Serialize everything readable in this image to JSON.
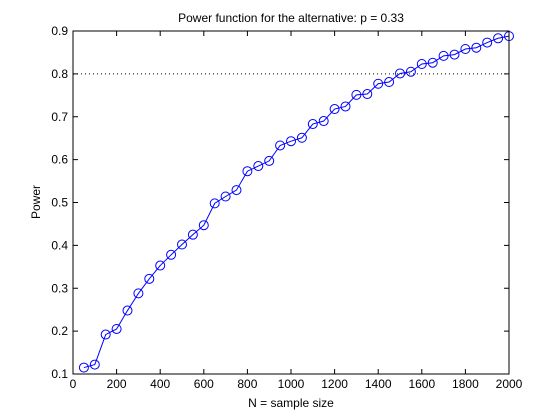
{
  "chart_data": {
    "type": "line",
    "title": "Power function for the alternative: p = 0.33",
    "xlabel": "N = sample size",
    "ylabel": "Power",
    "xlim": [
      0,
      2000
    ],
    "ylim": [
      0.1,
      0.9
    ],
    "xticks": [
      0,
      200,
      400,
      600,
      800,
      1000,
      1200,
      1400,
      1600,
      1800,
      2000
    ],
    "yticks": [
      0.1,
      0.2,
      0.3,
      0.4,
      0.5,
      0.6,
      0.7,
      0.8,
      0.9
    ],
    "xtick_labels": [
      "0",
      "200",
      "400",
      "600",
      "800",
      "1000",
      "1200",
      "1400",
      "1600",
      "1800",
      "2000"
    ],
    "ytick_labels": [
      "0.1",
      "0.2",
      "0.3",
      "0.4",
      "0.5",
      "0.6",
      "0.7",
      "0.8",
      "0.9"
    ],
    "grid": false,
    "reference_line": {
      "y": 0.8,
      "style": "dotted",
      "color": "#000000"
    },
    "series": [
      {
        "marker": "circle",
        "color": "#0000ff",
        "x": [
          50,
          100,
          150,
          200,
          250,
          300,
          350,
          400,
          450,
          500,
          550,
          600,
          650,
          700,
          750,
          800,
          850,
          900,
          950,
          1000,
          1050,
          1100,
          1150,
          1200,
          1250,
          1300,
          1350,
          1400,
          1450,
          1500,
          1550,
          1600,
          1650,
          1700,
          1750,
          1800,
          1850,
          1900,
          1950,
          2000
        ],
        "y": [
          0.115,
          0.122,
          0.192,
          0.205,
          0.248,
          0.288,
          0.322,
          0.353,
          0.378,
          0.402,
          0.425,
          0.447,
          0.498,
          0.514,
          0.529,
          0.573,
          0.585,
          0.597,
          0.633,
          0.643,
          0.651,
          0.683,
          0.69,
          0.718,
          0.724,
          0.751,
          0.753,
          0.777,
          0.781,
          0.801,
          0.805,
          0.823,
          0.826,
          0.842,
          0.845,
          0.858,
          0.861,
          0.873,
          0.883,
          0.888
        ]
      }
    ]
  }
}
